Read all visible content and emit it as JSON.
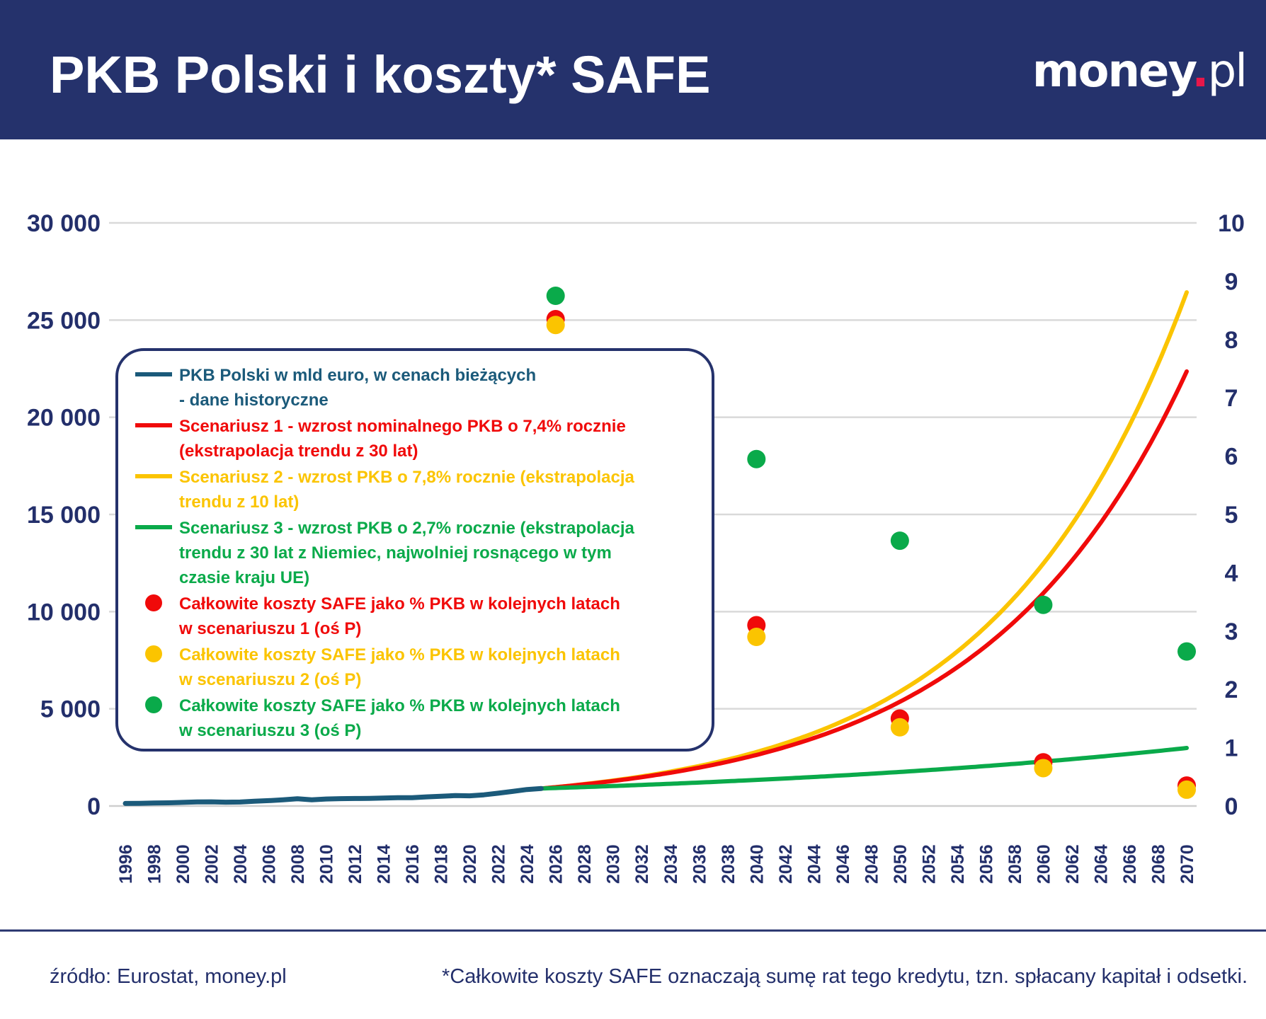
{
  "header": {
    "title": "PKB Polski i koszty* SAFE",
    "logo_text": "money.pl",
    "background": "#25326c"
  },
  "colors": {
    "historical": "#1b5a7a",
    "scenario1": "#f00a0a",
    "scenario2": "#fbc400",
    "scenario3": "#0aaa4a",
    "axis_text": "#232f6b",
    "grid": "#d9d9d9"
  },
  "chart_data": {
    "type": "line+scatter",
    "left_axis": {
      "ylim": [
        0,
        30000
      ],
      "ticks": [
        "0",
        "5 000",
        "10 000",
        "15 000",
        "20 000",
        "25 000",
        "30 000"
      ]
    },
    "right_axis": {
      "ylim": [
        0,
        10
      ],
      "ticks": [
        "0",
        "1",
        "2",
        "3",
        "4",
        "5",
        "6",
        "7",
        "8",
        "9",
        "10"
      ]
    },
    "x_ticks": [
      "1996",
      "1998",
      "2000",
      "2002",
      "2004",
      "2006",
      "2008",
      "2010",
      "2012",
      "2014",
      "2016",
      "2018",
      "2020",
      "2022",
      "2024",
      "2026",
      "2028",
      "2030",
      "2032",
      "2034",
      "2036",
      "2038",
      "2040",
      "2042",
      "2044",
      "2046",
      "2048",
      "2050",
      "2052",
      "2054",
      "2056",
      "2058",
      "2060",
      "2062",
      "2064",
      "2066",
      "2068",
      "2070"
    ],
    "xlim": [
      1996,
      2070
    ],
    "grid": true,
    "legend_placement": "upper-left",
    "series": [
      {
        "name": "PKB Polski w mld euro, w cenach bieżących - dane historyczne",
        "axis": "left",
        "kind": "line",
        "color_key": "historical",
        "x": [
          1996,
          1997,
          1998,
          1999,
          2000,
          2001,
          2002,
          2003,
          2004,
          2005,
          2006,
          2007,
          2008,
          2009,
          2010,
          2011,
          2012,
          2013,
          2014,
          2015,
          2016,
          2017,
          2018,
          2019,
          2020,
          2021,
          2022,
          2023,
          2024,
          2025
        ],
        "y": [
          130,
          140,
          155,
          165,
          185,
          210,
          215,
          195,
          205,
          245,
          275,
          315,
          370,
          320,
          360,
          380,
          385,
          395,
          410,
          430,
          425,
          470,
          500,
          535,
          525,
          575,
          660,
          750,
          850,
          900
        ]
      },
      {
        "name": "Scenariusz 1 - wzrost nominalnego PKB o 7,4% rocznie (ekstrapolacja trendu z 30 lat)",
        "axis": "left",
        "kind": "growth",
        "color_key": "scenario1",
        "start_year": 2025,
        "start_value": 900,
        "growth_rate_pct": 7.4,
        "end_year": 2070
      },
      {
        "name": "Scenariusz 2 - wzrost PKB o 7,8% rocznie (ekstrapolacja trendu z 10 lat)",
        "axis": "left",
        "kind": "growth",
        "color_key": "scenario2",
        "start_year": 2025,
        "start_value": 900,
        "growth_rate_pct": 7.8,
        "end_year": 2070
      },
      {
        "name": "Scenariusz 3 - wzrost PKB o 2,7% rocznie (ekstrapolacja trendu z 30 lat z Niemiec, najwolniej rosnącego w tym czasie kraju UE)",
        "axis": "left",
        "kind": "growth",
        "color_key": "scenario3",
        "start_year": 2025,
        "start_value": 900,
        "growth_rate_pct": 2.7,
        "end_year": 2070
      },
      {
        "name": "Całkowite koszty SAFE jako % PKB w kolejnych latach w scenariuszu 1 (oś P)",
        "axis": "right",
        "kind": "scatter",
        "color_key": "scenario1",
        "x": [
          2026,
          2040,
          2050,
          2060,
          2070
        ],
        "y": [
          8.35,
          3.1,
          1.5,
          0.75,
          0.35
        ]
      },
      {
        "name": "Całkowite koszty SAFE jako % PKB w kolejnych latach w scenariuszu 2 (oś P)",
        "axis": "right",
        "kind": "scatter",
        "color_key": "scenario2",
        "x": [
          2026,
          2040,
          2050,
          2060,
          2070
        ],
        "y": [
          8.25,
          2.9,
          1.35,
          0.65,
          0.28
        ]
      },
      {
        "name": "Całkowite koszty SAFE jako % PKB w kolejnych latach w scenariuszu 3 (oś P)",
        "axis": "right",
        "kind": "scatter",
        "color_key": "scenario3",
        "x": [
          2026,
          2040,
          2050,
          2060,
          2070
        ],
        "y": [
          8.75,
          5.95,
          4.55,
          3.45,
          2.65
        ]
      }
    ]
  },
  "legend": [
    {
      "marker": "line",
      "color_key": "historical",
      "lines": [
        "PKB Polski w mld euro, w cenach bieżących",
        "- dane historyczne"
      ]
    },
    {
      "marker": "line",
      "color_key": "scenario1",
      "lines": [
        "Scenariusz 1 - wzrost nominalnego PKB o 7,4% rocznie",
        "(ekstrapolacja trendu z 30 lat)"
      ]
    },
    {
      "marker": "line",
      "color_key": "scenario2",
      "lines": [
        "Scenariusz 2 - wzrost PKB o 7,8% rocznie (ekstrapolacja",
        "trendu z 10 lat)"
      ]
    },
    {
      "marker": "line",
      "color_key": "scenario3",
      "lines": [
        "Scenariusz 3 - wzrost PKB o 2,7% rocznie (ekstrapolacja",
        "trendu z 30 lat z Niemiec, najwolniej rosnącego w tym",
        "czasie kraju UE)"
      ]
    },
    {
      "marker": "dot",
      "color_key": "scenario1",
      "lines": [
        "Całkowite koszty SAFE jako % PKB w kolejnych latach",
        "w scenariuszu 1 (oś P)"
      ]
    },
    {
      "marker": "dot",
      "color_key": "scenario2",
      "lines": [
        "Całkowite koszty SAFE jako % PKB w kolejnych latach",
        "w scenariuszu 2 (oś P)"
      ]
    },
    {
      "marker": "dot",
      "color_key": "scenario3",
      "lines": [
        "Całkowite koszty SAFE jako % PKB w kolejnych latach",
        "w scenariuszu 3 (oś P)"
      ]
    }
  ],
  "footer": {
    "source": "źródło: Eurostat, money.pl",
    "note": "*Całkowite koszty SAFE oznaczają sumę rat tego kredytu, tzn. spłacany kapitał i odsetki."
  }
}
